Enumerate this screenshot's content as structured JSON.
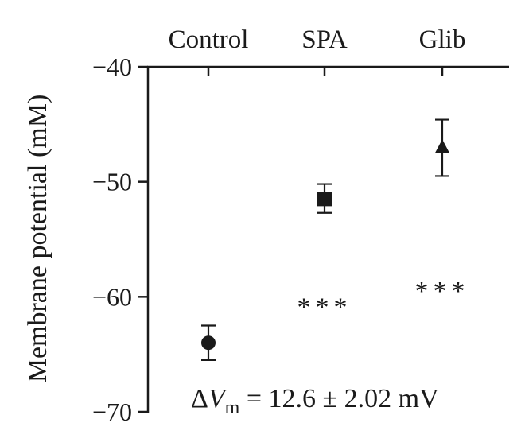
{
  "chart_data": {
    "type": "scatter",
    "title": "",
    "xlabel": "",
    "ylabel": "Membrane potential (mM)",
    "categories": [
      "Control",
      "SPA",
      "Glib"
    ],
    "ylim": [
      -70,
      -40
    ],
    "yticks": [
      -40,
      -50,
      -60,
      -70
    ],
    "ytick_labels": [
      "−40",
      "−50",
      "−60",
      "−70"
    ],
    "x_axis_position": "top",
    "grid": false,
    "legend": "none",
    "series": [
      {
        "markers": [
          "circle",
          "square",
          "triangle"
        ],
        "values": [
          -64.0,
          -51.5,
          -47.0
        ],
        "error_low": [
          -65.5,
          -52.7,
          -49.5
        ],
        "error_high": [
          -62.5,
          -50.2,
          -44.6
        ],
        "color": "#1a1a1a"
      }
    ],
    "annotations": [
      {
        "text": "***",
        "category": "SPA",
        "y": -60.7
      },
      {
        "text": "***",
        "category": "Glib",
        "y": -59.3
      }
    ],
    "footnote": {
      "delta": "Δ",
      "symbol": "V",
      "subscript": "m",
      "rest": " = 12.6 ± 2.02 mV"
    }
  }
}
